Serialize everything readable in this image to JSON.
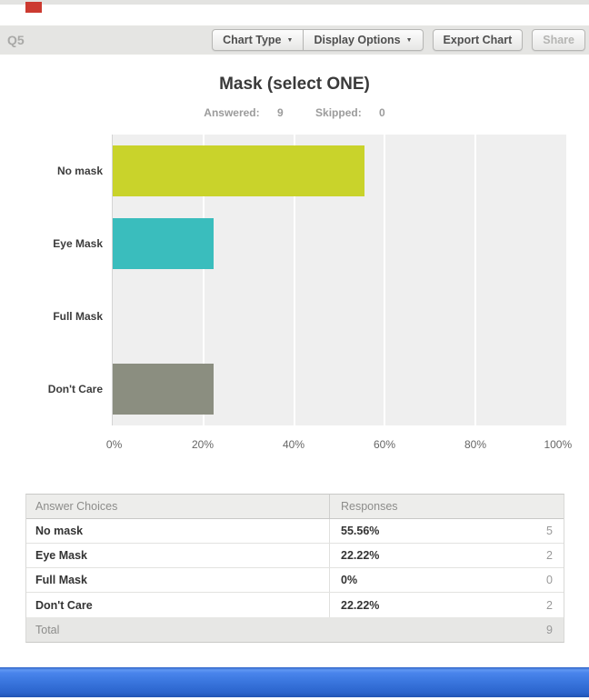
{
  "page": {
    "question_number": "Q5",
    "marker_color": "#cc3a30"
  },
  "toolbar": {
    "chart_type_label": "Chart Type",
    "display_options_label": "Display Options",
    "export_chart_label": "Export Chart",
    "share_label": "Share",
    "caret_icon": "▼"
  },
  "header": {
    "title": "Mask (select ONE)",
    "answered_label": "Answered:",
    "answered_value": "9",
    "skipped_label": "Skipped:",
    "skipped_value": "0"
  },
  "chart_data": {
    "type": "bar",
    "orientation": "horizontal",
    "title": "Mask (select ONE)",
    "categories": [
      "No mask",
      "Eye Mask",
      "Full Mask",
      "Don't Care"
    ],
    "values": [
      55.56,
      22.22,
      0,
      22.22
    ],
    "bar_colors": [
      "#c9d32b",
      "#3abdbd",
      "#8b8e80",
      "#8b8e80"
    ],
    "x_ticks": [
      "0%",
      "20%",
      "40%",
      "60%",
      "80%",
      "100%"
    ],
    "xlim": [
      0,
      100
    ],
    "xlabel": "",
    "ylabel": "",
    "grid": true,
    "plot_background": "#efefef",
    "legend": false
  },
  "table": {
    "headers": [
      "Answer Choices",
      "Responses"
    ],
    "rows": [
      {
        "choice": "No mask",
        "percent": "55.56%",
        "count": "5"
      },
      {
        "choice": "Eye Mask",
        "percent": "22.22%",
        "count": "2"
      },
      {
        "choice": "Full Mask",
        "percent": "0%",
        "count": "0"
      },
      {
        "choice": "Don't Care",
        "percent": "22.22%",
        "count": "2"
      }
    ],
    "total_label": "Total",
    "total_value": "9"
  },
  "footer": {
    "bar_color": "#2f6bd4"
  }
}
